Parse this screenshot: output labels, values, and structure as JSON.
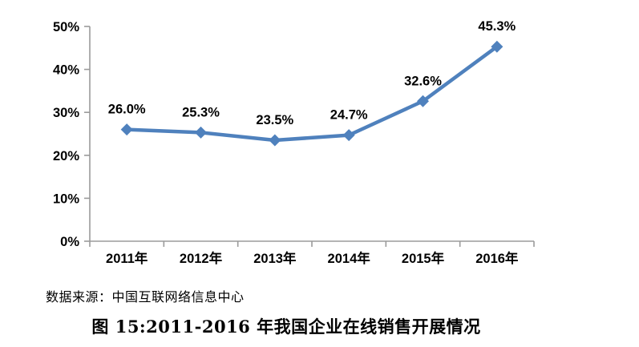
{
  "chart_data": {
    "type": "line",
    "title": "",
    "xlabel": "",
    "ylabel": "",
    "categories": [
      "2011年",
      "2012年",
      "2013年",
      "2014年",
      "2015年",
      "2016年"
    ],
    "values": [
      26.0,
      25.3,
      23.5,
      24.7,
      32.6,
      45.3
    ],
    "data_labels": [
      "26.0%",
      "25.3%",
      "23.5%",
      "24.7%",
      "32.6%",
      "45.3%"
    ],
    "y_tick_labels": [
      "0%",
      "10%",
      "20%",
      "30%",
      "40%",
      "50%"
    ],
    "ylim": [
      0,
      50
    ],
    "y_step": 10,
    "grid": false,
    "legend_position": "none",
    "marker_shape": "diamond",
    "colors": {
      "line": "#4F81BD",
      "marker": "#4F81BD",
      "axis": "#9b9b9b",
      "tick": "#9b9b9b",
      "data_label": "#000000",
      "axis_label": "#000000",
      "background": "#ffffff"
    }
  },
  "footer": {
    "source": "数据来源：中国互联网络信息中心"
  },
  "caption": {
    "text": "图 15:2011-2016 年我国企业在线销售开展情况"
  }
}
